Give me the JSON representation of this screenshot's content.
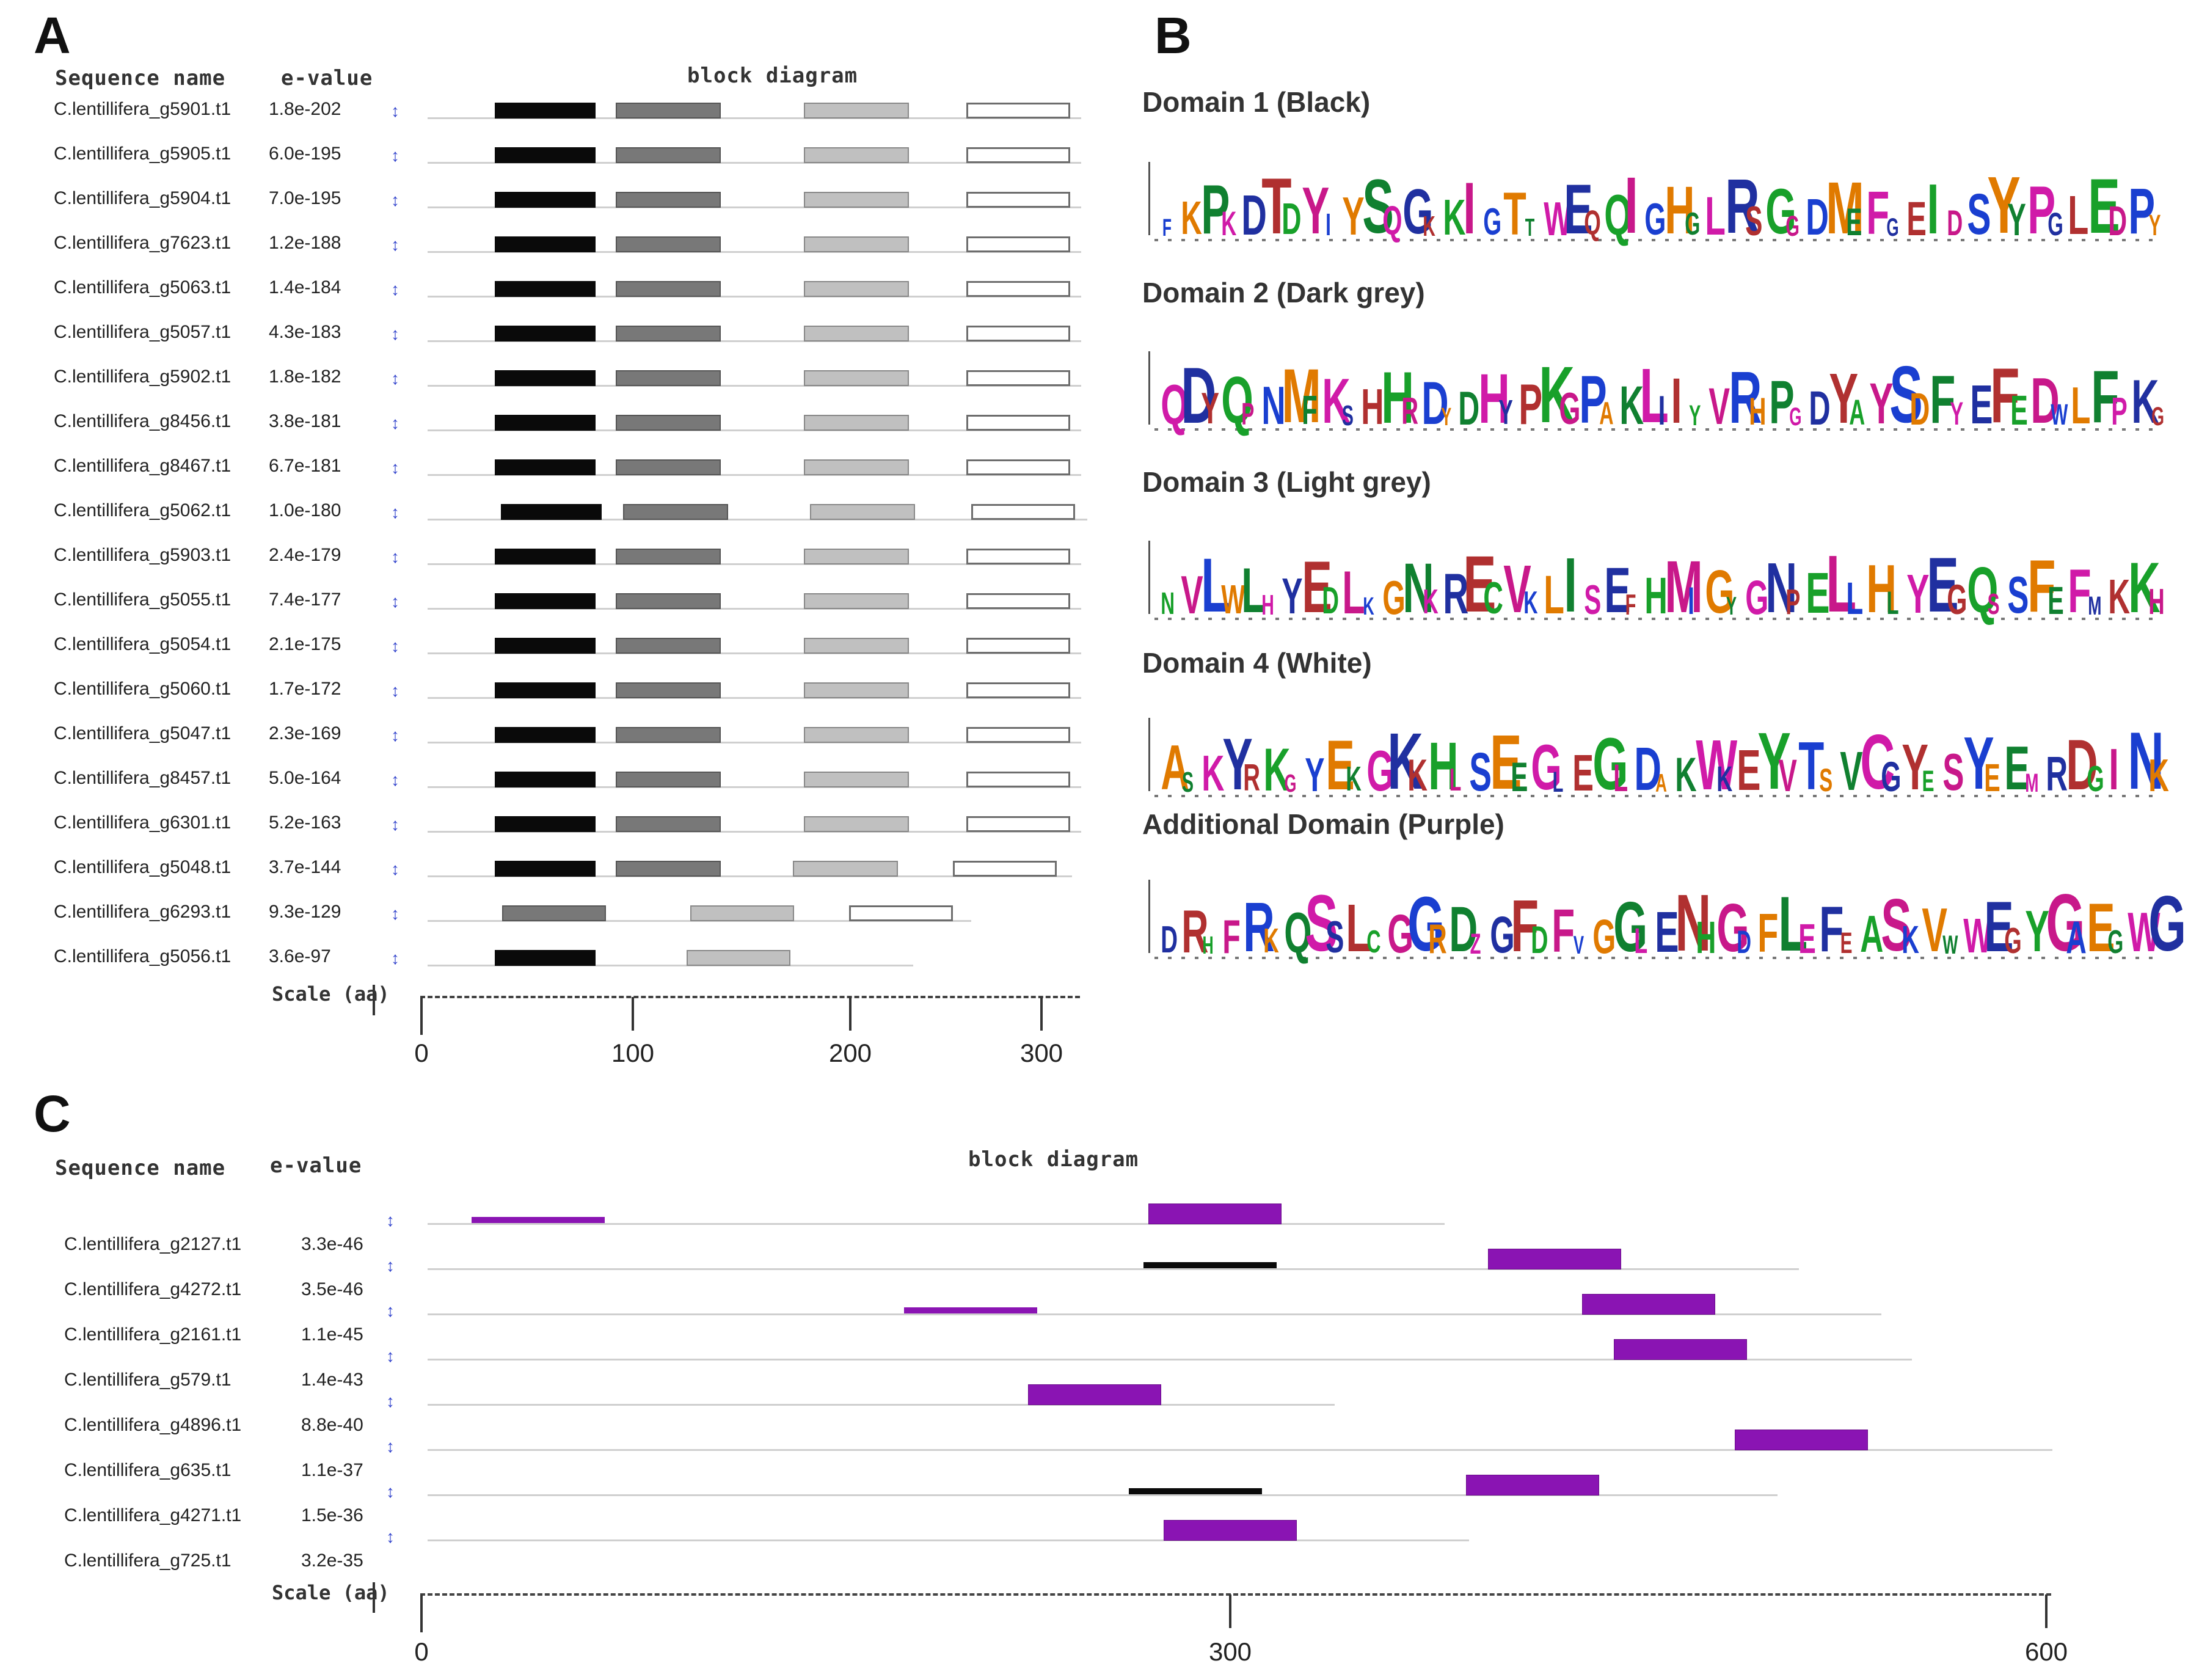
{
  "panels": {
    "a_letter": "A",
    "b_letter": "B",
    "c_letter": "C"
  },
  "panel_a": {
    "col_sequence_name": "Sequence name",
    "col_evalue": "e-value",
    "col_block_diagram": "block diagram",
    "scale_label": "Scale (aa)",
    "scale_ticks": [
      "0",
      "100",
      "200",
      "300"
    ],
    "rows": [
      {
        "name": "C.lentillifera_g5901.t1",
        "evalue": "1.8e-202"
      },
      {
        "name": "C.lentillifera_g5905.t1",
        "evalue": "6.0e-195"
      },
      {
        "name": "C.lentillifera_g5904.t1",
        "evalue": "7.0e-195"
      },
      {
        "name": "C.lentillifera_g7623.t1",
        "evalue": "1.2e-188"
      },
      {
        "name": "C.lentillifera_g5063.t1",
        "evalue": "1.4e-184"
      },
      {
        "name": "C.lentillifera_g5057.t1",
        "evalue": "4.3e-183"
      },
      {
        "name": "C.lentillifera_g5902.t1",
        "evalue": "1.8e-182"
      },
      {
        "name": "C.lentillifera_g8456.t1",
        "evalue": "3.8e-181"
      },
      {
        "name": "C.lentillifera_g8467.t1",
        "evalue": "6.7e-181"
      },
      {
        "name": "C.lentillifera_g5062.t1",
        "evalue": "1.0e-180"
      },
      {
        "name": "C.lentillifera_g5903.t1",
        "evalue": "2.4e-179"
      },
      {
        "name": "C.lentillifera_g5055.t1",
        "evalue": "7.4e-177"
      },
      {
        "name": "C.lentillifera_g5054.t1",
        "evalue": "2.1e-175"
      },
      {
        "name": "C.lentillifera_g5060.t1",
        "evalue": "1.7e-172"
      },
      {
        "name": "C.lentillifera_g5047.t1",
        "evalue": "2.3e-169"
      },
      {
        "name": "C.lentillifera_g8457.t1",
        "evalue": "5.0e-164"
      },
      {
        "name": "C.lentillifera_g6301.t1",
        "evalue": "5.2e-163"
      },
      {
        "name": "C.lentillifera_g5048.t1",
        "evalue": "3.7e-144"
      },
      {
        "name": "C.lentillifera_g6293.t1",
        "evalue": "9.3e-129"
      },
      {
        "name": "C.lentillifera_g5056.t1",
        "evalue": "3.6e-97"
      }
    ]
  },
  "panel_b": {
    "domains": [
      {
        "title": "Domain 1 (Black)",
        "logo": "FKPKDTDYIYSQGKKIGTTWEQQIGHGLRSGGDMEFGEIDSYYPGLEDPY"
      },
      {
        "title": "Domain 2 (Dark grey)",
        "logo": "QDYQPNMFKSHHRDYDHYPKGPAKLIIYVRHPGDYAYSDFYEFEDWLFPKG"
      },
      {
        "name_hint": "",
        "title": "Domain 3 (Light grey)",
        "logo": "NVLWLHYEDLKGNKRECVKLISEFHMIGYGNPELLHLYEGQSSFEFMKKH"
      },
      {
        "title": "Domain 4 (White)",
        "logo": "ASKYRKGYEKGKKHLSEEGLEGLDAKWKEYVTSVCGYESYEEMRDGINK"
      },
      {
        "title": "Additional Domain (Purple)",
        "logo": "DRHFRKQSSLCGGRDZGFDFVGGLENHGDFLEFEASKVWWEGYGAEGWG"
      }
    ]
  },
  "panel_c": {
    "col_sequence_name": "Sequence name",
    "col_evalue": "e-value",
    "col_block_diagram": "block diagram",
    "scale_label": "Scale (aa)",
    "scale_ticks": [
      "0",
      "300",
      "600"
    ],
    "rows": [
      {
        "name": "C.lentillifera_g2127.t1",
        "evalue": "3.3e-46"
      },
      {
        "name": "C.lentillifera_g4272.t1",
        "evalue": "3.5e-46"
      },
      {
        "name": "C.lentillifera_g2161.t1",
        "evalue": "1.1e-45"
      },
      {
        "name": "C.lentillifera_g579.t1",
        "evalue": "1.4e-43"
      },
      {
        "name": "C.lentillifera_g4896.t1",
        "evalue": "8.8e-40"
      },
      {
        "name": "C.lentillifera_g635.t1",
        "evalue": "1.1e-37"
      },
      {
        "name": "C.lentillifera_g4271.t1",
        "evalue": "1.5e-36"
      },
      {
        "name": "C.lentillifera_g725.t1",
        "evalue": "3.2e-35"
      }
    ]
  },
  "colors": {
    "black_domain": "#0a0a0a",
    "dark_grey_domain": "#787878",
    "light_grey_domain": "#c0c0c0",
    "white_domain": "#ffffff",
    "purple_domain": "#8a14b3",
    "logo_palette": [
      "#1a3fd0",
      "#d01aa8",
      "#18a02a",
      "#e07a00",
      "#2030a0",
      "#c8188a",
      "#108030",
      "#b03030"
    ]
  }
}
